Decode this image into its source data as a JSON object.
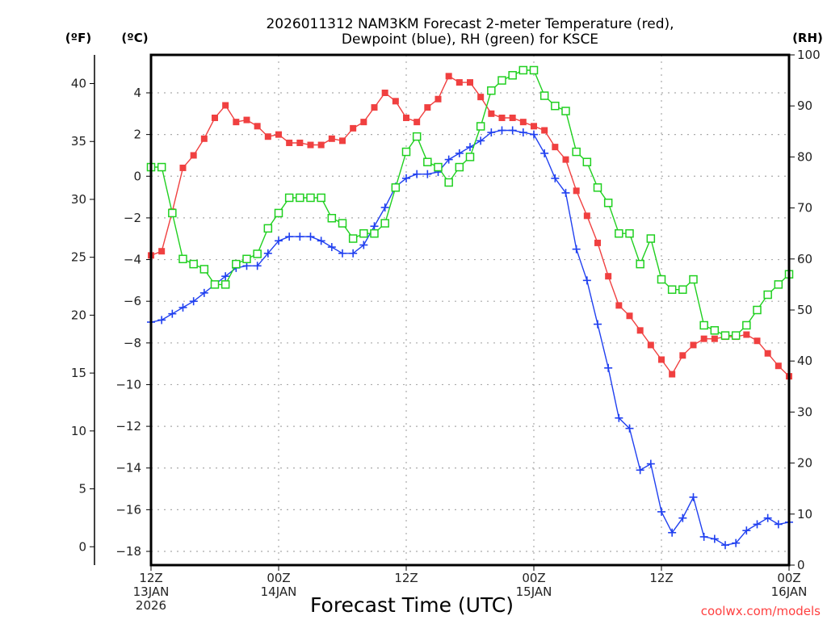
{
  "chart_data": {
    "type": "line",
    "title_lines": [
      "2026011312 NAM3KM Forecast 2-meter Temperature (red),",
      "Dewpoint (blue), RH (green) for KSCE"
    ],
    "xlabel": "Forecast Time (UTC)",
    "x_hours": [
      0,
      1,
      2,
      3,
      4,
      5,
      6,
      7,
      8,
      9,
      10,
      11,
      12,
      13,
      14,
      15,
      16,
      17,
      18,
      19,
      20,
      21,
      22,
      23,
      24,
      25,
      26,
      27,
      28,
      29,
      30,
      31,
      32,
      33,
      34,
      35,
      36,
      37,
      38,
      39,
      40,
      41,
      42,
      43,
      44,
      45,
      46,
      47,
      48,
      49,
      50,
      51,
      52,
      53,
      54,
      55,
      56,
      57,
      58,
      59,
      60
    ],
    "xlim": [
      0,
      60
    ],
    "x_ticks": [
      {
        "hour": 0,
        "lines": [
          "12Z",
          "13JAN",
          "2026"
        ]
      },
      {
        "hour": 12,
        "lines": [
          "00Z",
          "14JAN"
        ]
      },
      {
        "hour": 24,
        "lines": [
          "12Z"
        ]
      },
      {
        "hour": 36,
        "lines": [
          "00Z",
          "15JAN"
        ]
      },
      {
        "hour": 48,
        "lines": [
          "12Z"
        ]
      },
      {
        "hour": 60,
        "lines": [
          "00Z",
          "16JAN"
        ]
      }
    ],
    "y_axes": {
      "fahrenheit": {
        "label": "(ºF)",
        "ticks": [
          0,
          5,
          10,
          15,
          20,
          25,
          30,
          35,
          40
        ]
      },
      "celsius": {
        "label": "(ºC)",
        "ticks": [
          -18,
          -16,
          -14,
          -12,
          -10,
          -8,
          -6,
          -4,
          -2,
          0,
          2,
          4
        ],
        "ylim": [
          -19.0,
          5.8
        ]
      },
      "rh": {
        "label": "(RH)",
        "ticks": [
          0,
          10,
          20,
          30,
          40,
          50,
          60,
          70,
          80,
          90,
          100
        ],
        "ylim": [
          0,
          100
        ]
      }
    },
    "grid": true,
    "series": [
      {
        "name": "Temperature",
        "axis": "celsius",
        "color": "#f04040",
        "marker": "filled-square",
        "values": [
          -3.8,
          -3.6,
          -1.7,
          0.4,
          1.0,
          1.8,
          2.8,
          3.4,
          2.6,
          2.7,
          2.4,
          1.9,
          2.0,
          1.6,
          1.6,
          1.5,
          1.5,
          1.8,
          1.7,
          2.3,
          2.6,
          3.3,
          4.0,
          3.6,
          2.8,
          2.6,
          3.3,
          3.7,
          4.8,
          4.5,
          4.5,
          3.8,
          3.0,
          2.8,
          2.8,
          2.6,
          2.4,
          2.2,
          1.4,
          0.8,
          -0.7,
          -1.9,
          -3.2,
          -4.8,
          -6.2,
          -6.7,
          -7.4,
          -8.1,
          -8.8,
          -9.5,
          -8.6,
          -8.1,
          -7.8,
          -7.8,
          -7.7,
          -7.7,
          -7.6,
          -7.9,
          -8.5,
          -9.1,
          -9.6
        ]
      },
      {
        "name": "Dewpoint",
        "axis": "celsius",
        "color": "#2040f0",
        "marker": "plus",
        "values": [
          -7.0,
          -6.9,
          -6.6,
          -6.3,
          -6.0,
          -5.6,
          -5.2,
          -4.8,
          -4.4,
          -4.3,
          -4.3,
          -3.7,
          -3.1,
          -2.9,
          -2.9,
          -2.9,
          -3.1,
          -3.4,
          -3.7,
          -3.7,
          -3.3,
          -2.4,
          -1.5,
          -0.5,
          -0.1,
          0.1,
          0.1,
          0.2,
          0.8,
          1.1,
          1.4,
          1.7,
          2.1,
          2.2,
          2.2,
          2.1,
          2.0,
          1.1,
          -0.1,
          -0.8,
          -3.5,
          -5.0,
          -7.1,
          -9.2,
          -11.6,
          -12.1,
          -14.1,
          -13.8,
          -16.1,
          -17.1,
          -16.4,
          -15.4,
          -17.3,
          -17.4,
          -17.7,
          -17.6,
          -17.0,
          -16.7,
          -16.4,
          -16.7,
          -16.6
        ]
      },
      {
        "name": "RH",
        "axis": "rh",
        "color": "#20d020",
        "marker": "open-square",
        "values": [
          78,
          78,
          69,
          60,
          59,
          58,
          55,
          55,
          59,
          60,
          61,
          66,
          69,
          72,
          72,
          72,
          72,
          68,
          67,
          64,
          65,
          65,
          67,
          74,
          81,
          84,
          79,
          78,
          75,
          78,
          80,
          86,
          93,
          95,
          96,
          97,
          97,
          92,
          90,
          89,
          81,
          79,
          74,
          71,
          65,
          65,
          59,
          64,
          56,
          54,
          54,
          56,
          47,
          46,
          45,
          45,
          47,
          50,
          53,
          55,
          57
        ]
      }
    ],
    "credit": "coolwx.com/models"
  }
}
